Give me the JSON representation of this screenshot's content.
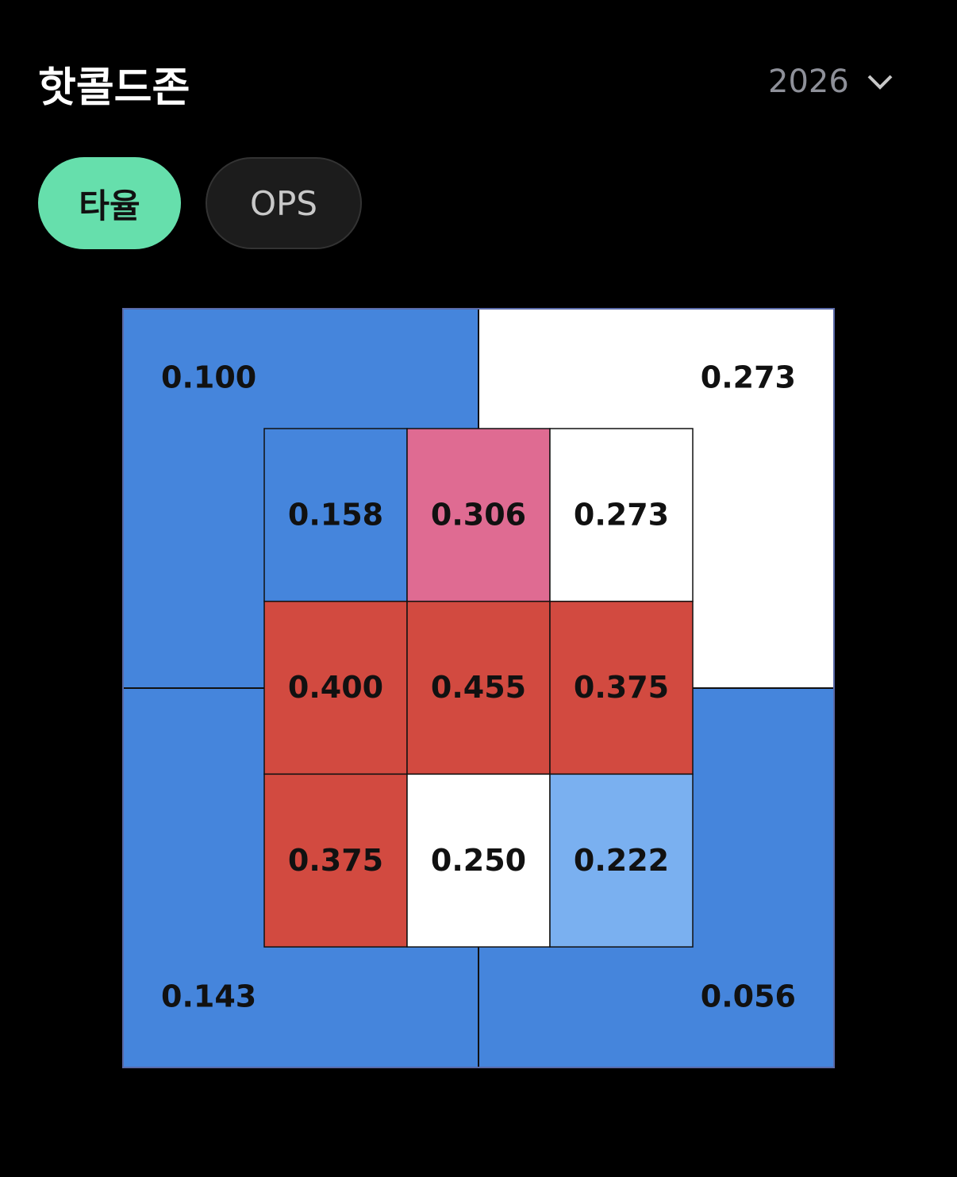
{
  "header": {
    "title": "핫콜드존",
    "year": "2026"
  },
  "tabs": [
    {
      "label": "타율",
      "active": true
    },
    {
      "label": "OPS",
      "active": false
    }
  ],
  "zone": {
    "outer": [
      {
        "value": "0.100",
        "color": "#4585dc"
      },
      {
        "value": "0.273",
        "color": "#ffffff"
      },
      {
        "value": "0.143",
        "color": "#4585dc"
      },
      {
        "value": "0.056",
        "color": "#4585dc"
      }
    ],
    "inner": [
      [
        {
          "value": "0.158",
          "color": "#4585dc"
        },
        {
          "value": "0.306",
          "color": "#df6b92"
        },
        {
          "value": "0.273",
          "color": "#ffffff"
        }
      ],
      [
        {
          "value": "0.400",
          "color": "#d24a40"
        },
        {
          "value": "0.455",
          "color": "#d24a40"
        },
        {
          "value": "0.375",
          "color": "#d24a40"
        }
      ],
      [
        {
          "value": "0.375",
          "color": "#d24a40"
        },
        {
          "value": "0.250",
          "color": "#ffffff"
        },
        {
          "value": "0.222",
          "color": "#7ab0f0"
        }
      ]
    ]
  }
}
